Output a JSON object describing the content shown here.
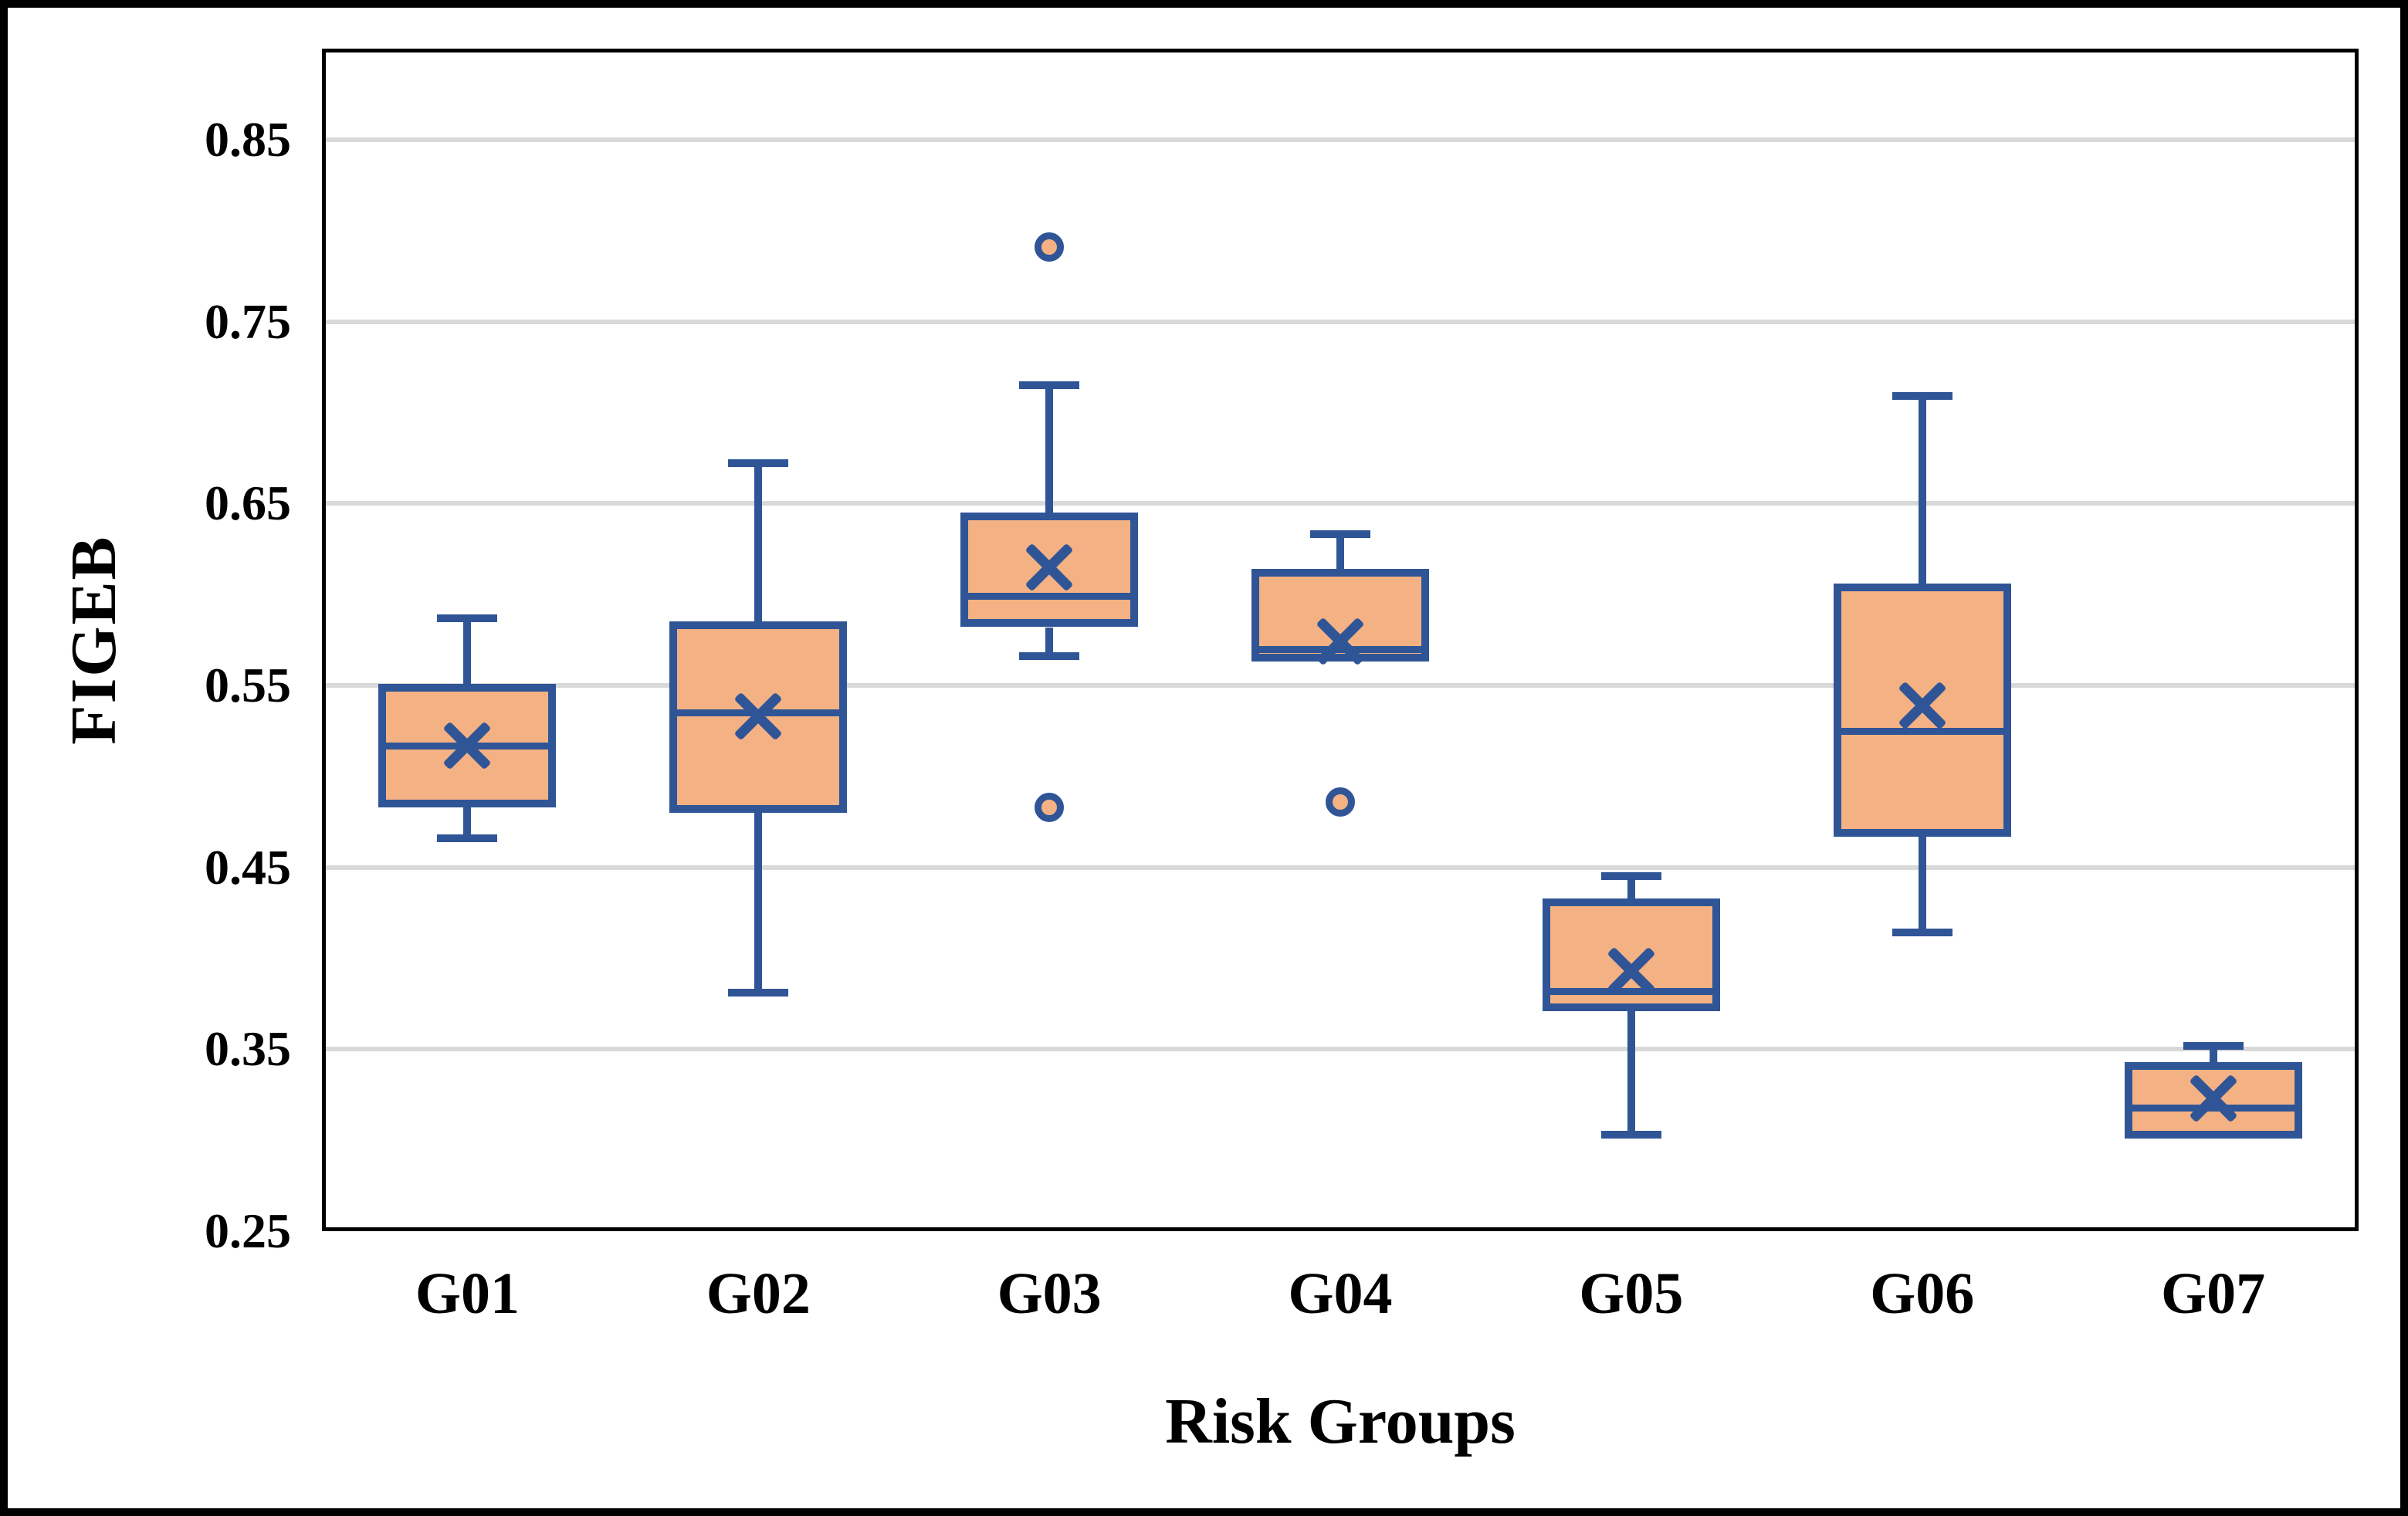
{
  "figure": {
    "background": "#ffffff",
    "outer_border_color": "#000000",
    "plot_frame_color": "#000000"
  },
  "y_axis": {
    "title": "FIGEB",
    "tick_labels": [
      "0.85",
      "0.75",
      "0.65",
      "0.55",
      "0.45",
      "0.35",
      "0.25"
    ],
    "tick_values": [
      0.85,
      0.75,
      0.65,
      0.55,
      0.45,
      0.35,
      0.25
    ],
    "min": 0.25,
    "max": 0.9,
    "gridline_step": 0.1,
    "gridline_color": "#d9d9d9"
  },
  "x_axis": {
    "title": "Risk Groups",
    "categories": [
      "G01",
      "G02",
      "G03",
      "G04",
      "G05",
      "G06",
      "G07"
    ]
  },
  "chart_data": {
    "type": "boxplot",
    "title": "",
    "xlabel": "Risk Groups",
    "ylabel": "FIGEB",
    "ylim": [
      0.25,
      0.9
    ],
    "grid": "horizontal",
    "legend": "none",
    "categories": [
      "G01",
      "G02",
      "G03",
      "G04",
      "G05",
      "G06",
      "G07"
    ],
    "series": [
      {
        "name": "G01",
        "whisker_low": 0.466,
        "q1": 0.483,
        "median": 0.517,
        "mean": 0.517,
        "q3": 0.551,
        "whisker_high": 0.587,
        "outliers": []
      },
      {
        "name": "G02",
        "whisker_low": 0.381,
        "q1": 0.48,
        "median": 0.535,
        "mean": 0.533,
        "q3": 0.585,
        "whisker_high": 0.672,
        "outliers": []
      },
      {
        "name": "G03",
        "whisker_low": 0.566,
        "q1": 0.582,
        "median": 0.599,
        "mean": 0.615,
        "q3": 0.645,
        "whisker_high": 0.715,
        "outliers": [
          0.791,
          0.483
        ]
      },
      {
        "name": "G04",
        "whisker_low": 0.563,
        "q1": 0.563,
        "median": 0.57,
        "mean": 0.574,
        "q3": 0.614,
        "whisker_high": 0.633,
        "outliers": [
          0.486
        ]
      },
      {
        "name": "G05",
        "whisker_low": 0.303,
        "q1": 0.371,
        "median": 0.382,
        "mean": 0.393,
        "q3": 0.433,
        "whisker_high": 0.445,
        "outliers": []
      },
      {
        "name": "G06",
        "whisker_low": 0.414,
        "q1": 0.467,
        "median": 0.525,
        "mean": 0.539,
        "q3": 0.606,
        "whisker_high": 0.709,
        "outliers": []
      },
      {
        "name": "G07",
        "whisker_low": 0.301,
        "q1": 0.301,
        "median": 0.318,
        "mean": 0.323,
        "q3": 0.343,
        "whisker_high": 0.352,
        "outliers": []
      }
    ],
    "box_fill_color": "#F4B183",
    "box_line_color": "#2F5597",
    "mean_marker": "x",
    "outlier_marker": "circle"
  }
}
